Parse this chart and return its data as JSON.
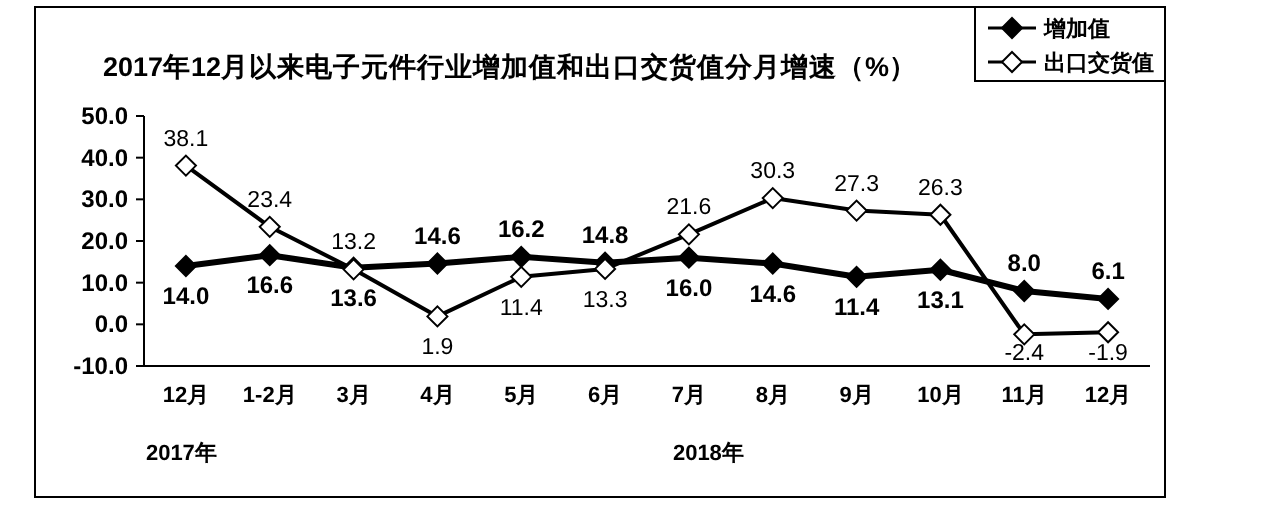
{
  "chart_data": {
    "type": "line",
    "title": "2017年12月以来电子元件行业增加值和出口交货值分月增速（%）",
    "categories": [
      "12月",
      "1-2月",
      "3月",
      "4月",
      "5月",
      "6月",
      "7月",
      "8月",
      "9月",
      "10月",
      "11月",
      "12月"
    ],
    "series": [
      {
        "name": "增加值",
        "color": "#000000",
        "values": [
          14.0,
          16.6,
          13.6,
          14.6,
          16.2,
          14.8,
          16.0,
          14.6,
          11.4,
          13.1,
          8.0,
          6.1
        ],
        "value_labels": [
          "14.0",
          "16.6",
          "13.6",
          "14.6",
          "16.2",
          "14.8",
          "16.0",
          "14.6",
          "11.4",
          "13.1",
          "8.0",
          "6.1"
        ]
      },
      {
        "name": "出口交货值",
        "color": "#000000",
        "values": [
          38.1,
          23.4,
          13.2,
          1.9,
          11.4,
          13.3,
          21.6,
          30.3,
          27.3,
          26.3,
          -2.4,
          -1.9
        ],
        "value_labels": [
          "38.1",
          "23.4",
          "13.2",
          "1.9",
          "11.4",
          "13.3",
          "21.6",
          "30.3",
          "27.3",
          "26.3",
          "-2.4",
          "-1.9"
        ]
      }
    ],
    "ylim": [
      -10,
      50
    ],
    "yticks": [
      {
        "value": -10,
        "label": "-10.0"
      },
      {
        "value": 0,
        "label": "0.0"
      },
      {
        "value": 10,
        "label": "10.0"
      },
      {
        "value": 20,
        "label": "20.0"
      },
      {
        "value": 30,
        "label": "30.0"
      },
      {
        "value": 40,
        "label": "40.0"
      },
      {
        "value": 50,
        "label": "50.0"
      }
    ],
    "annotations": [
      "2017年",
      "2018年"
    ],
    "marker": "diamond",
    "line_style": "solid",
    "grid": false,
    "legend": "top right"
  }
}
